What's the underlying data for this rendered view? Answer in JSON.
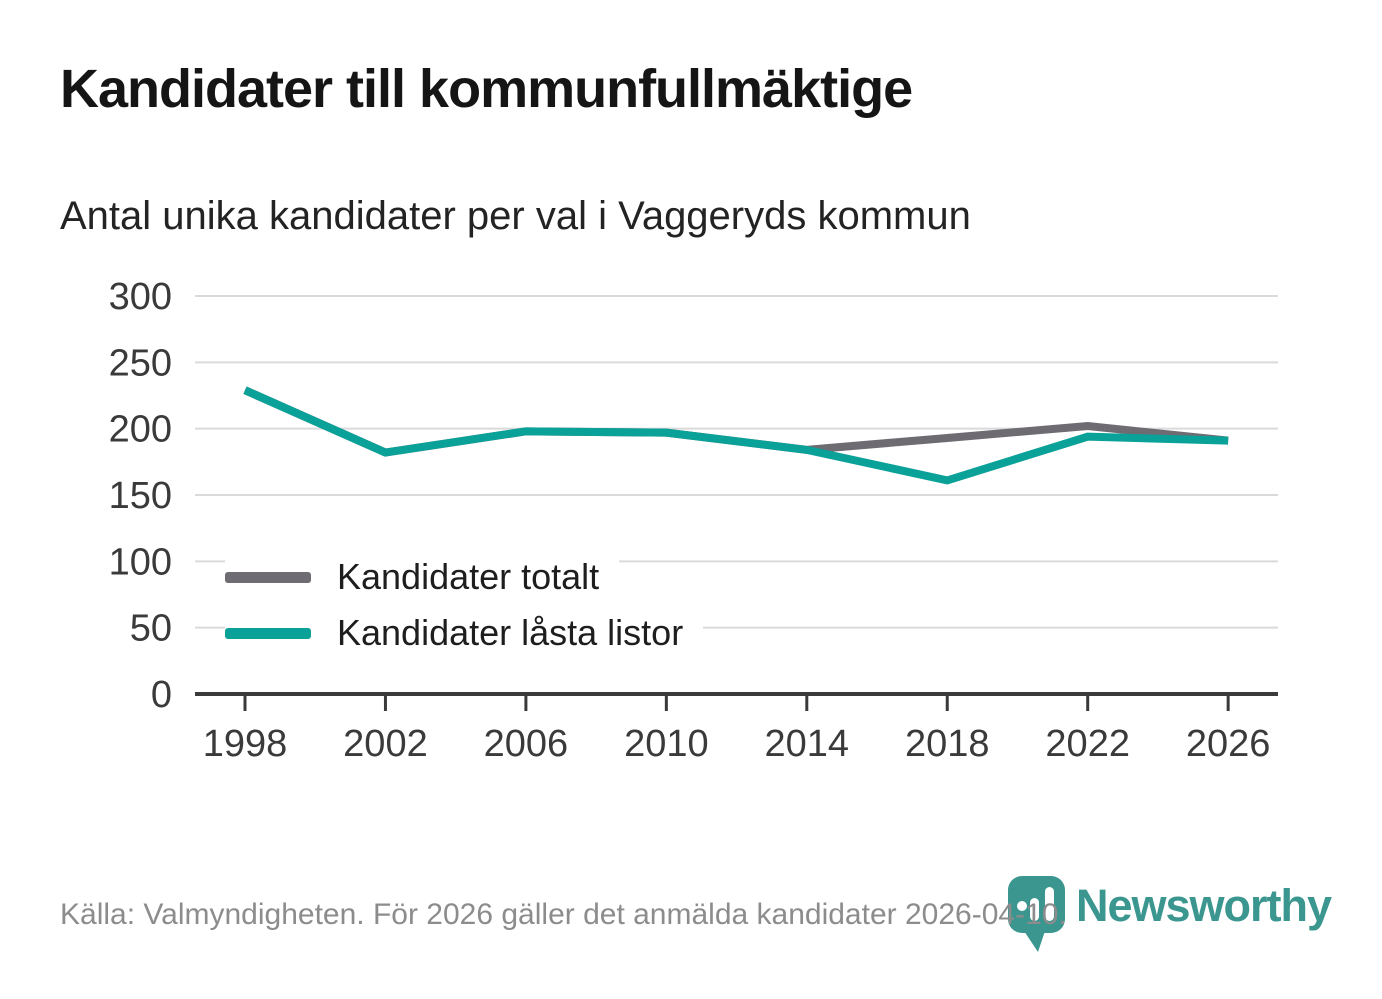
{
  "header": {
    "title": "Kandidater till kommunfullmäktige",
    "subtitle": "Antal unika kandidater per val i Vaggeryds kommun"
  },
  "chart_data": {
    "type": "line",
    "title": "Kandidater till kommunfullmäktige",
    "subtitle": "Antal unika kandidater per val i Vaggeryds kommun",
    "categories": [
      "1998",
      "2002",
      "2006",
      "2010",
      "2014",
      "2018",
      "2022",
      "2026"
    ],
    "series": [
      {
        "name": "Kandidater totalt",
        "color": "#6F6B72",
        "values": [
          229,
          182,
          198,
          197,
          184,
          193,
          202,
          191
        ]
      },
      {
        "name": "Kandidater låsta listor",
        "color": "#0AA199",
        "values": [
          229,
          182,
          198,
          197,
          184,
          161,
          194,
          191
        ]
      }
    ],
    "xlabel": "",
    "ylabel": "",
    "ylim": [
      0,
      300
    ],
    "yticks": [
      0,
      50,
      100,
      150,
      200,
      250,
      300
    ],
    "grid": true,
    "legend_position": "inside-left"
  },
  "footer": {
    "source": "Källa: Valmyndigheten. För 2026 gäller det anmälda kandidater 2026-04-10.",
    "brand": "Newsworthy"
  },
  "colors": {
    "grid": "#DADADA",
    "axis": "#3A3A3A",
    "axis_text": "#3A3A3A",
    "brand_teal": "#3A968F"
  }
}
